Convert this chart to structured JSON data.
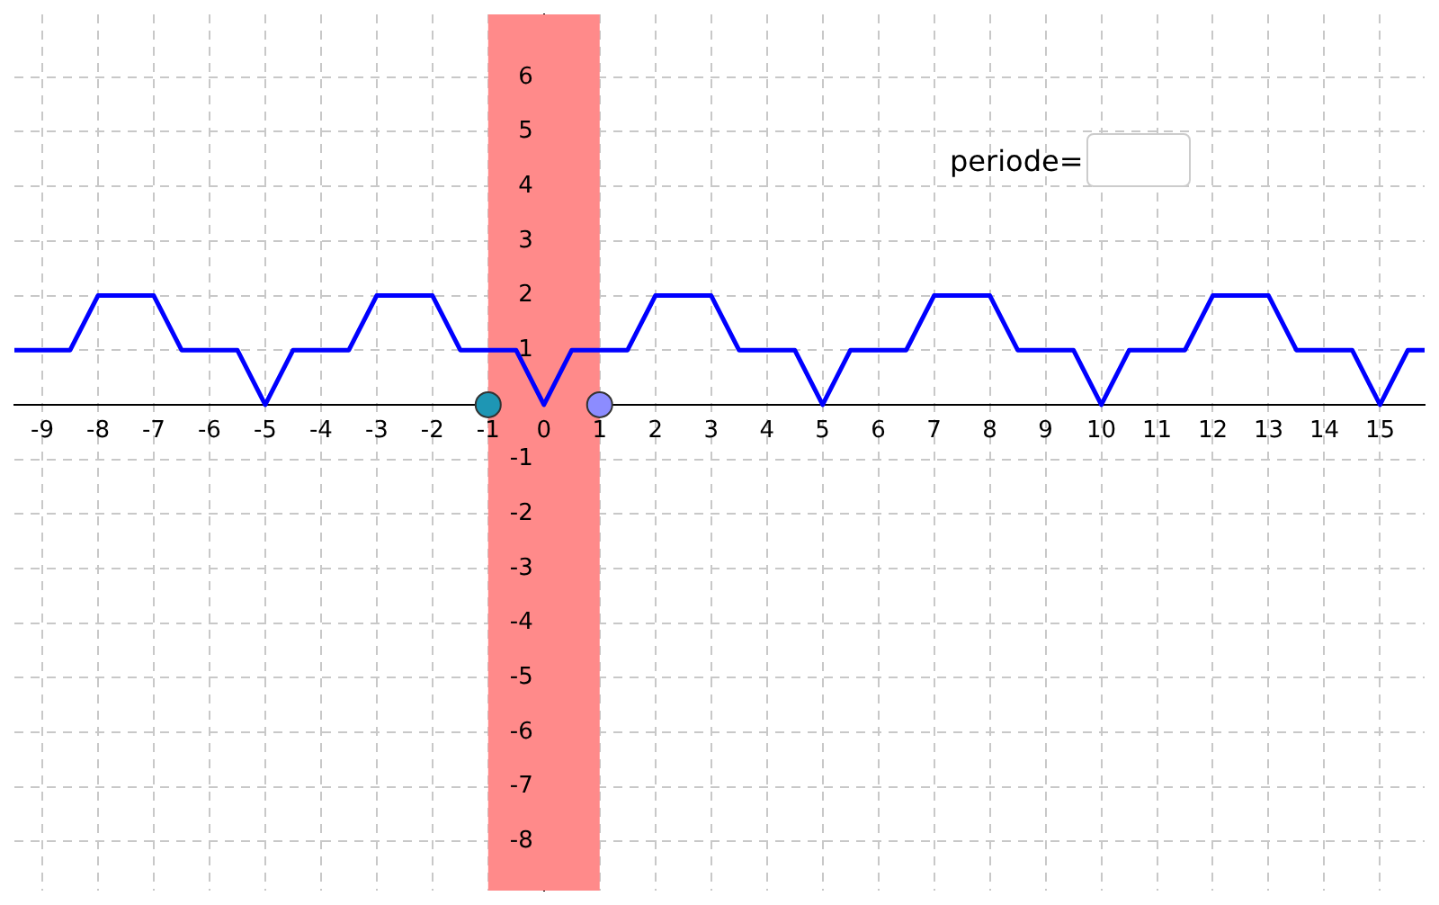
{
  "chart_data": {
    "type": "line",
    "xlim": [
      -9.5,
      15.8
    ],
    "ylim": [
      -8.9,
      7.15
    ],
    "xticks": [
      -9,
      -8,
      -7,
      -6,
      -5,
      -4,
      -3,
      -2,
      -1,
      0,
      1,
      2,
      3,
      4,
      5,
      6,
      7,
      8,
      9,
      10,
      11,
      12,
      13,
      14,
      15
    ],
    "yticks": [
      -8,
      -7,
      -6,
      -5,
      -4,
      -3,
      -2,
      -1,
      1,
      2,
      3,
      4,
      5,
      6
    ],
    "grid": true,
    "legend": false,
    "line_style": "solid",
    "series": [
      {
        "color": "#0000ff",
        "x": [
          -9.5,
          -8.5,
          -8,
          -7,
          -6.5,
          -5.5,
          -5,
          -4.5,
          -3.5,
          -3,
          -2,
          -1.5,
          -0.5,
          0,
          0.5,
          1.5,
          2,
          3,
          3.5,
          4.5,
          5,
          5.5,
          6.5,
          7,
          8,
          8.5,
          9.5,
          10,
          10.5,
          11.5,
          12,
          13,
          13.5,
          14.5,
          15,
          15.5,
          15.8
        ],
        "values": [
          1,
          1,
          2,
          2,
          1,
          1,
          0,
          1,
          1,
          2,
          2,
          1,
          1,
          0,
          1,
          1,
          2,
          2,
          1,
          1,
          0,
          1,
          1,
          2,
          2,
          1,
          1,
          0,
          1,
          1,
          2,
          2,
          1,
          1,
          0,
          1,
          1
        ]
      },
      {
        "type": "scatter",
        "x": [
          -1,
          1
        ],
        "values": [
          0,
          0
        ],
        "colors": [
          "#1e96b4",
          "#8c8cff"
        ]
      }
    ],
    "bands": [
      {
        "axis": "x",
        "from": -1,
        "to": 1,
        "color": "#ff8a8a"
      }
    ],
    "annotations": [
      "periode="
    ]
  }
}
